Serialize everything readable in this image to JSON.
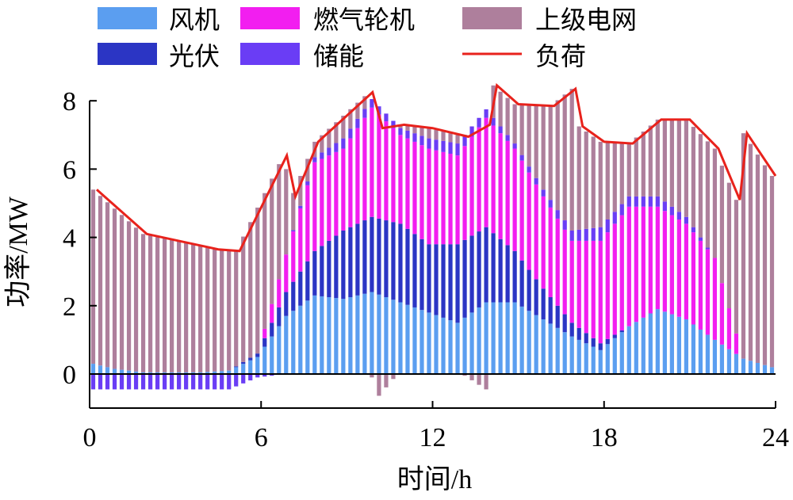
{
  "chart_data": {
    "type": "bar",
    "stacked": true,
    "xlabel": "时间/h",
    "ylabel": "功率/MW",
    "xlim": [
      0,
      24
    ],
    "ylim": [
      -1,
      8.2
    ],
    "xticks": [
      0,
      6,
      12,
      18,
      24
    ],
    "yticks": [
      0,
      2,
      4,
      6,
      8
    ],
    "legend_position": "top",
    "series": [
      {
        "name": "风机",
        "color": "#5b9ef0"
      },
      {
        "name": "光伏",
        "color": "#2b35c4"
      },
      {
        "name": "燃气轮机",
        "color": "#f21ef0"
      },
      {
        "name": "储能",
        "color": "#6a3df5"
      },
      {
        "name": "上级电网",
        "color": "#ae7f9c"
      },
      {
        "name": "负荷",
        "color": "#e8221c",
        "type": "line"
      }
    ],
    "time_step_h": 0.25,
    "wind_hourly": [
      0.35,
      0.15,
      0.05,
      0.05,
      0.05,
      0.1,
      0.5,
      1.7,
      2.3,
      2.2,
      2.4,
      2.1,
      1.8,
      1.5,
      2.1,
      2.1,
      1.6,
      1.1,
      0.7,
      1.4,
      1.9,
      1.6,
      1.0,
      0.45,
      0.2
    ],
    "pv_hourly": [
      0,
      0,
      0,
      0,
      0,
      0,
      0.1,
      0.7,
      1.3,
      2.0,
      2.2,
      2.3,
      2.0,
      2.3,
      2.2,
      1.5,
      0.9,
      0.4,
      0.2,
      0,
      0,
      0,
      0,
      0,
      0
    ],
    "gas_hourly": [
      0,
      0,
      0,
      0,
      0,
      0,
      0,
      1.1,
      2.6,
      2.4,
      3.2,
      2.6,
      2.8,
      2.6,
      3.2,
      3.0,
      2.7,
      2.4,
      3.0,
      3.5,
      3.0,
      2.8,
      2.4,
      0,
      0
    ],
    "storage_hourly": [
      -0.45,
      -0.45,
      -0.45,
      -0.45,
      -0.45,
      -0.45,
      -0.1,
      0,
      0.15,
      0.3,
      0.25,
      0.2,
      0.3,
      0.35,
      0.25,
      0.15,
      0.2,
      0.3,
      0.4,
      0.3,
      0.3,
      0.2,
      0,
      0,
      0
    ],
    "load": [
      [
        0.25,
        5.4
      ],
      [
        2.0,
        4.1
      ],
      [
        4.5,
        3.65
      ],
      [
        5.25,
        3.6
      ],
      [
        6.9,
        6.4
      ],
      [
        7.2,
        5.2
      ],
      [
        8.0,
        6.8
      ],
      [
        9.9,
        8.25
      ],
      [
        10.25,
        7.2
      ],
      [
        11.0,
        7.3
      ],
      [
        12.0,
        7.2
      ],
      [
        13.25,
        6.95
      ],
      [
        14.0,
        7.3
      ],
      [
        14.25,
        8.45
      ],
      [
        15.0,
        7.9
      ],
      [
        16.25,
        7.85
      ],
      [
        17.0,
        8.35
      ],
      [
        17.25,
        7.25
      ],
      [
        18.0,
        6.8
      ],
      [
        19.0,
        6.75
      ],
      [
        20.0,
        7.45
      ],
      [
        21.0,
        7.45
      ],
      [
        22.0,
        6.6
      ],
      [
        22.75,
        5.1
      ],
      [
        23.0,
        7.05
      ],
      [
        24.0,
        5.8
      ]
    ]
  }
}
